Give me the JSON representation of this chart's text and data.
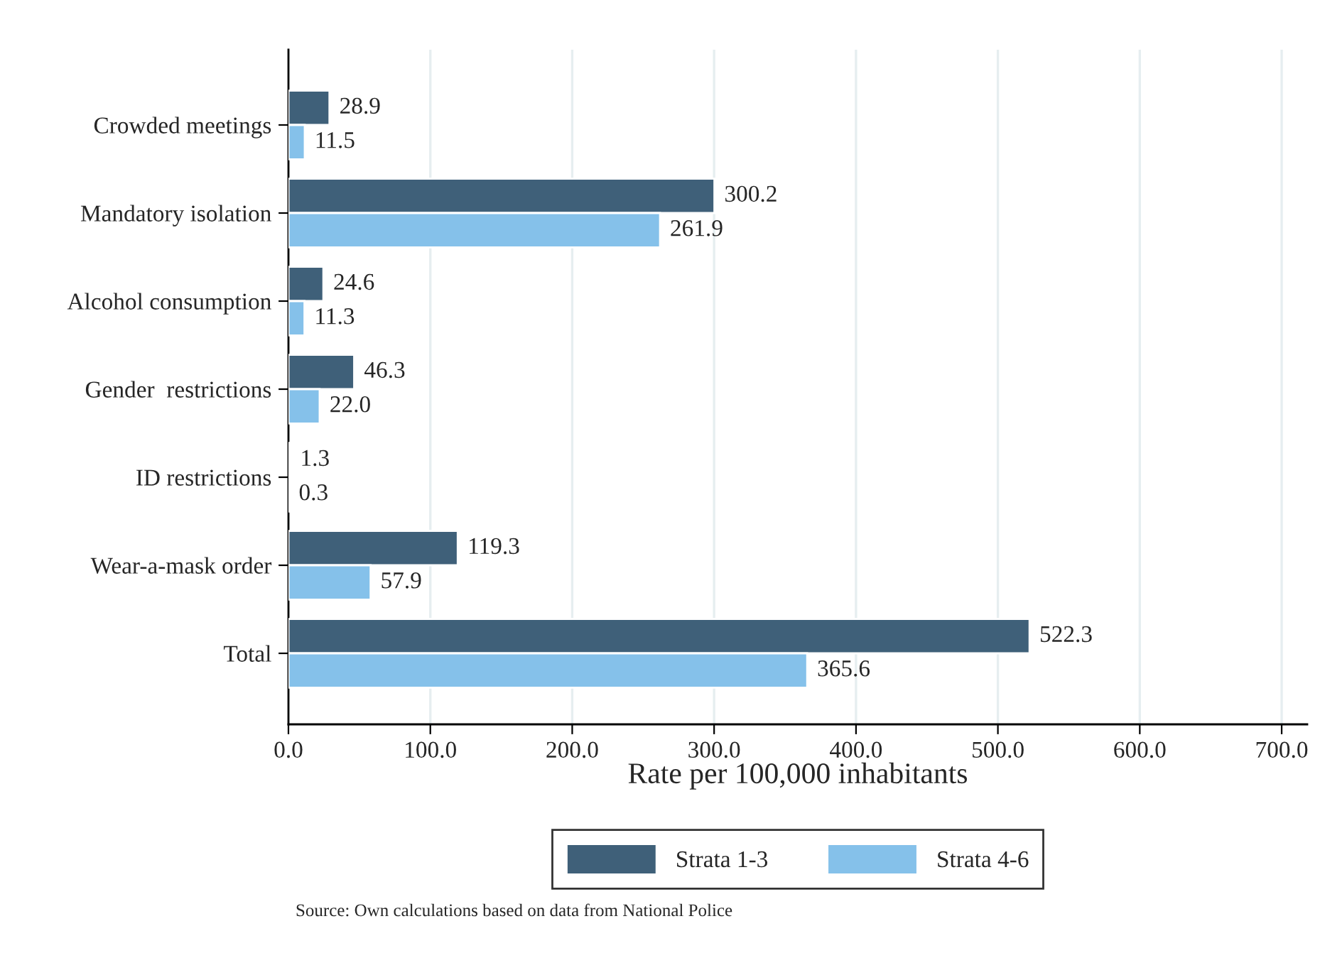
{
  "chart_data": {
    "type": "bar",
    "orientation": "horizontal",
    "categories": [
      "Crowded meetings",
      "Mandatory isolation",
      "Alcohol consumption",
      "Gender  restrictions",
      "ID restrictions",
      "Wear-a-mask order",
      "Total"
    ],
    "series": [
      {
        "name": "Strata 1-3",
        "color": "#3f6079",
        "values": [
          28.9,
          300.2,
          24.6,
          46.3,
          1.3,
          119.3,
          522.3
        ],
        "value_labels": [
          "28.9",
          "300.2",
          "24.6",
          "46.3",
          "1.3",
          "119.3",
          "522.3"
        ]
      },
      {
        "name": "Strata 4-6",
        "color": "#85c1ea",
        "values": [
          11.5,
          261.9,
          11.3,
          22.0,
          0.3,
          57.9,
          365.6
        ],
        "value_labels": [
          "11.5",
          "261.9",
          "11.3",
          "22.0",
          "0.3",
          "57.9",
          "365.6"
        ]
      }
    ],
    "xlabel": "Rate per 100,000 inhabitants",
    "xlim": [
      0,
      718
    ],
    "xticks": [
      {
        "value": 0,
        "label": "0.0"
      },
      {
        "value": 100,
        "label": "100.0"
      },
      {
        "value": 200,
        "label": "200.0"
      },
      {
        "value": 300,
        "label": "300.0"
      },
      {
        "value": 400,
        "label": "400.0"
      },
      {
        "value": 500,
        "label": "500.0"
      },
      {
        "value": 600,
        "label": "600.0"
      },
      {
        "value": 700,
        "label": "700.0"
      }
    ],
    "grid": "x",
    "legend": "bottom",
    "annotations": [
      "Source: Own calculations based on data from National Police"
    ]
  }
}
